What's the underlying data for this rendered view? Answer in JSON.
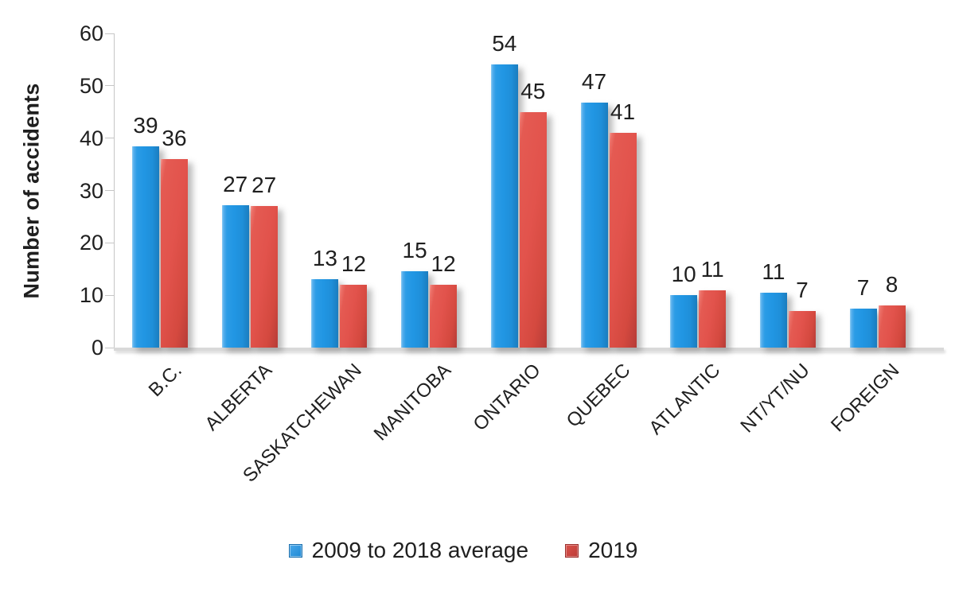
{
  "chart_data": {
    "type": "bar",
    "title": "",
    "xlabel": "",
    "ylabel": "Number of accidents",
    "categories": [
      "B.C.",
      "ALBERTA",
      "SASKATCHEWAN",
      "MANITOBA",
      "ONTARIO",
      "QUEBEC",
      "ATLANTIC",
      "NT/YT/NU",
      "FOREIGN"
    ],
    "series": [
      {
        "name": "2009 to 2018 average",
        "color": "#2196E3",
        "values": [
          39,
          27,
          13,
          15,
          54,
          47,
          10,
          11,
          7
        ],
        "values_precise": [
          38.5,
          27.2,
          13,
          14.6,
          54,
          46.8,
          10,
          10.5,
          7.4
        ]
      },
      {
        "name": "2019",
        "color": "#E2534C",
        "values": [
          36,
          27,
          12,
          12,
          45,
          41,
          11,
          7,
          8
        ]
      }
    ],
    "ylim": [
      0,
      60
    ],
    "yticks": [
      0,
      10,
      20,
      30,
      40,
      50,
      60
    ],
    "grid": false,
    "legend_position": "bottom"
  }
}
